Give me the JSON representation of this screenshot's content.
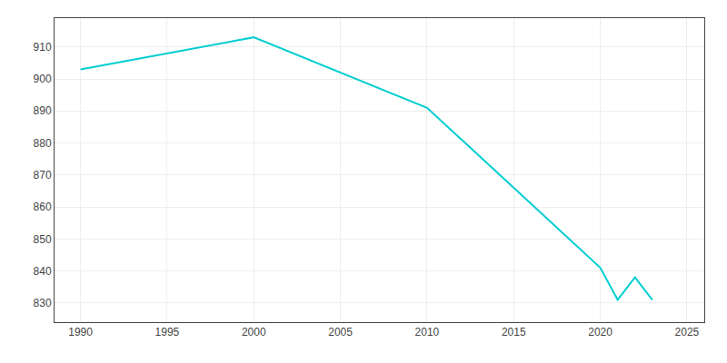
{
  "chart_data": {
    "type": "line",
    "x": [
      1990,
      2000,
      2010,
      2020,
      2021,
      2022,
      2023
    ],
    "values": [
      903,
      913,
      891,
      841,
      831,
      838,
      831
    ],
    "color": "#00CED1",
    "xlim": [
      1988.5,
      2026
    ],
    "ylim": [
      824,
      919
    ],
    "xticks": [
      1990,
      1995,
      2000,
      2005,
      2010,
      2015,
      2020,
      2025
    ],
    "yticks": [
      830,
      840,
      850,
      860,
      870,
      880,
      890,
      900,
      910
    ],
    "grid": true
  }
}
